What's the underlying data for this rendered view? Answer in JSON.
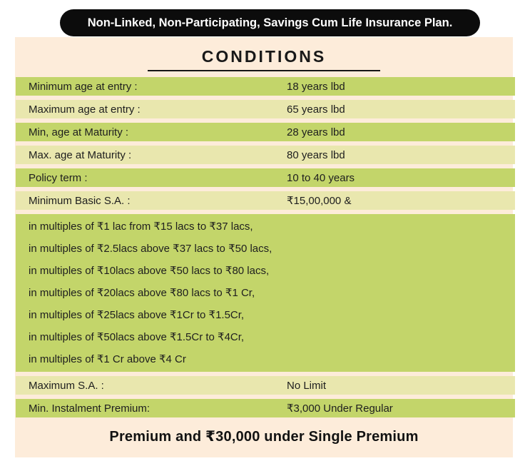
{
  "banner": {
    "text": "Non-Linked, Non-Participating, Savings Cum Life Insurance Plan."
  },
  "title": "CONDITIONS",
  "colors": {
    "row_green": "#c3d56a",
    "row_light": "#e9e7ae",
    "panel_cream": "#fdecda",
    "banner_black": "#0c0c0c"
  },
  "rows": [
    {
      "label": "Minimum age at entry :",
      "value": "18 years lbd",
      "tone": "green"
    },
    {
      "label": "Maximum age at entry :",
      "value": "65 years lbd",
      "tone": "light"
    },
    {
      "label": "Min, age at Maturity :",
      "value": "28 years lbd",
      "tone": "green"
    },
    {
      "label": "Max. age at Maturity :",
      "value": "80 years lbd",
      "tone": "light"
    },
    {
      "label": "Policy term :",
      "value": "10 to 40 years",
      "tone": "green"
    },
    {
      "label": "Minimum Basic S.A. :",
      "value": "₹15,00,000 &",
      "tone": "light"
    },
    {
      "label": "Maximum S.A. :",
      "value": "No Limit",
      "tone": "light"
    },
    {
      "label": "Min. Instalment Premium:",
      "value": "₹3,000 Under Regular",
      "tone": "green"
    }
  ],
  "multiples_block": {
    "lines": [
      "in multiples of ₹1 lac from ₹15 lacs to ₹37 lacs,",
      "in multiples of ₹2.5lacs above ₹37 lacs to ₹50 lacs,",
      "in multiples of ₹10lacs above ₹50 lacs to ₹80 lacs,",
      "in multiples of ₹20lacs above ₹80 lacs to ₹1 Cr,",
      "in multiples of ₹25lacs above ₹1Cr to ₹1.5Cr,",
      "in multiples of ₹50lacs above ₹1.5Cr to ₹4Cr,",
      "in multiples of ₹1 Cr above ₹4 Cr"
    ]
  },
  "footer": {
    "text": "Premium and ₹30,000 under Single Premium"
  }
}
